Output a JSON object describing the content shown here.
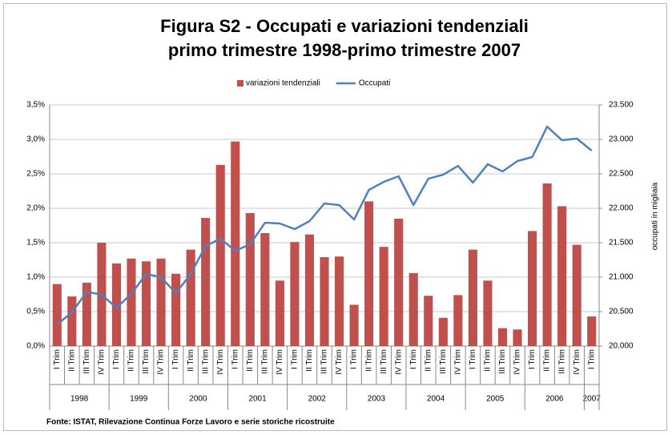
{
  "chart_data": {
    "type": "bar_line",
    "title": "Figura S2 - Occupati e variazioni tendenziali primo trimestre 1998-primo trimestre 2007",
    "y2label": "occupati in migliaia",
    "source": "Fonte: ISTAT, Rilevazione Continua Forze Lavoro e serie storiche ricostruite",
    "categories": [
      "I Trim",
      "II Trim",
      "III Trim",
      "IV Trim",
      "I Trim",
      "II Trim",
      "III Trim",
      "IV Trim",
      "I Trim",
      "II Trim",
      "III Trim",
      "IV Trim",
      "I Trim",
      "II Trim",
      "III Trim",
      "IV Trim",
      "I Trim",
      "II Trim",
      "III Trim",
      "IV Trim",
      "I Trim",
      "II Trim",
      "III Trim",
      "IV Trim",
      "I Trim",
      "II Trim",
      "III Trim",
      "IV Trim",
      "I Trim",
      "II Trim",
      "III Trim",
      "IV Trim",
      "I Trim",
      "II Trim",
      "III Trim",
      "IV Trim",
      "I Trim"
    ],
    "years": [
      "1998",
      "1999",
      "2000",
      "2001",
      "2002",
      "2003",
      "2004",
      "2005",
      "2006",
      "2007"
    ],
    "series": [
      {
        "name": "variazioni tendenziali",
        "type": "bar",
        "color": "#c0504d",
        "values": [
          0.9,
          0.72,
          0.92,
          1.5,
          1.2,
          1.27,
          1.23,
          1.27,
          1.05,
          1.4,
          1.86,
          2.63,
          2.97,
          1.93,
          1.64,
          0.95,
          1.51,
          1.62,
          1.29,
          1.3,
          0.6,
          2.1,
          1.44,
          1.85,
          1.06,
          0.73,
          0.41,
          0.74,
          1.4,
          0.95,
          0.26,
          0.24,
          1.67,
          2.36,
          2.03,
          1.47,
          0.43
        ]
      },
      {
        "name": "Occupati",
        "type": "line",
        "axis": "y2",
        "color": "#4f81bd",
        "values": [
          20314,
          20488,
          20790,
          20744,
          20558,
          20756,
          21047,
          21000,
          20767,
          21047,
          21453,
          21558,
          21384,
          21477,
          21790,
          21779,
          21698,
          21814,
          22070,
          22047,
          21837,
          22267,
          22384,
          22465,
          22047,
          22430,
          22488,
          22616,
          22372,
          22640,
          22535,
          22686,
          22744,
          23186,
          22988,
          23012,
          22837
        ]
      }
    ],
    "ylim": [
      0,
      3.5
    ],
    "yticks": [
      {
        "value": 0,
        "label": "0,0%"
      },
      {
        "value": 0.5,
        "label": "0,5%"
      },
      {
        "value": 1,
        "label": "1,0%"
      },
      {
        "value": 1.5,
        "label": "1,5%"
      },
      {
        "value": 2,
        "label": "2,0%"
      },
      {
        "value": 2.5,
        "label": "2,5%"
      },
      {
        "value": 3,
        "label": "3,0%"
      },
      {
        "value": 3.5,
        "label": "3,5%"
      }
    ],
    "y2lim": [
      20000,
      23500
    ],
    "y2ticks": [
      {
        "value": 20000,
        "label": "20.000"
      },
      {
        "value": 20500,
        "label": "20.500"
      },
      {
        "value": 21000,
        "label": "21.000"
      },
      {
        "value": 21500,
        "label": "21.500"
      },
      {
        "value": 22000,
        "label": "22.000"
      },
      {
        "value": 22500,
        "label": "22.500"
      },
      {
        "value": 23000,
        "label": "23.000"
      },
      {
        "value": 23500,
        "label": "23.500"
      }
    ],
    "grid": true,
    "legend": "top"
  }
}
